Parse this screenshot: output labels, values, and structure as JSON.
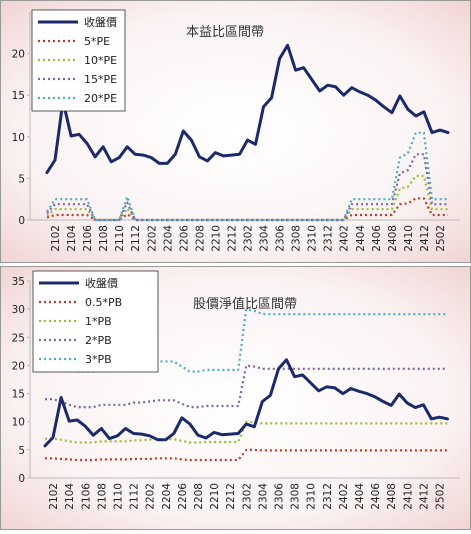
{
  "chart_data": [
    {
      "type": "line",
      "title": "本益比區間帶",
      "categories": [
        null,
        "2102",
        null,
        "2104",
        null,
        "2106",
        null,
        "2108",
        null,
        "2110",
        null,
        "2112",
        null,
        "2202",
        null,
        "2204",
        null,
        "2206",
        null,
        "2208",
        null,
        "2210",
        null,
        "2212",
        null,
        "2302",
        null,
        "2304",
        null,
        "2306",
        null,
        "2308",
        null,
        "2310",
        null,
        "2312",
        null,
        "2402",
        null,
        "2404",
        null,
        "2406",
        null,
        "2408",
        null,
        "2410",
        null,
        "2412",
        null,
        "2502",
        null
      ],
      "ylim": [
        0,
        25
      ],
      "yticks": [
        0,
        5,
        10,
        15,
        20
      ],
      "legend": "upper left",
      "series": [
        {
          "name": "收盤價",
          "color": "#1b2a6b",
          "values": [
            5.7,
            7.2,
            14.3,
            10.1,
            10.3,
            9.2,
            7.6,
            8.8,
            7.0,
            7.5,
            8.8,
            7.9,
            7.8,
            7.5,
            6.8,
            6.8,
            7.9,
            10.7,
            9.6,
            7.6,
            7.1,
            8.1,
            7.7,
            7.8,
            7.9,
            9.6,
            9.1,
            13.6,
            14.7,
            19.4,
            21.0,
            18.0,
            18.3,
            16.9,
            15.5,
            16.2,
            16.0,
            15.0,
            15.9,
            15.4,
            15.0,
            14.4,
            13.6,
            12.9,
            14.9,
            13.3,
            12.5,
            13.0,
            10.5,
            10.8,
            10.5
          ]
        },
        {
          "name": "5*PE",
          "color": "#c0392b",
          "values": [
            0.3,
            0.6,
            0.6,
            0.6,
            0.6,
            0.6,
            0,
            0,
            0,
            0,
            0.7,
            0,
            0,
            0,
            0,
            0,
            0,
            0,
            0,
            0,
            0,
            0,
            0,
            0,
            0,
            0,
            0,
            0,
            0,
            0,
            0,
            0,
            0,
            0,
            0,
            0,
            0,
            0,
            0.6,
            0.6,
            0.6,
            0.6,
            0.6,
            0.6,
            1.9,
            2.0,
            2.6,
            2.6,
            0.6,
            0.6,
            0.6
          ]
        },
        {
          "name": "10*PE",
          "color": "#9bbb3b",
          "values": [
            0.5,
            1.3,
            1.3,
            1.3,
            1.3,
            1.3,
            0,
            0,
            0,
            0,
            1.4,
            0,
            0,
            0,
            0,
            0,
            0,
            0,
            0,
            0,
            0,
            0,
            0,
            0,
            0,
            0,
            0,
            0,
            0,
            0,
            0,
            0,
            0,
            0,
            0,
            0,
            0,
            0,
            1.3,
            1.3,
            1.3,
            1.3,
            1.3,
            1.3,
            3.8,
            4.0,
            5.3,
            5.3,
            1.3,
            1.3,
            1.3
          ]
        },
        {
          "name": "15*PE",
          "color": "#8064a2",
          "values": [
            0.8,
            1.9,
            1.9,
            1.9,
            1.9,
            1.9,
            0,
            0,
            0,
            0,
            2.1,
            0,
            0,
            0,
            0,
            0,
            0,
            0,
            0,
            0,
            0,
            0,
            0,
            0,
            0,
            0,
            0,
            0,
            0,
            0,
            0,
            0,
            0,
            0,
            0,
            0,
            0,
            0,
            1.9,
            1.9,
            1.9,
            1.9,
            1.9,
            1.9,
            5.6,
            6.0,
            7.9,
            7.9,
            1.9,
            1.9,
            1.9
          ]
        },
        {
          "name": "20*PE",
          "color": "#4bacc6",
          "values": [
            1.0,
            2.5,
            2.5,
            2.5,
            2.5,
            2.5,
            0,
            0,
            0,
            0,
            2.8,
            0,
            0,
            0,
            0,
            0,
            0,
            0,
            0,
            0,
            0,
            0,
            0,
            0,
            0,
            0,
            0,
            0,
            0,
            0,
            0,
            0,
            0,
            0,
            0,
            0,
            0,
            0,
            2.5,
            2.5,
            2.5,
            2.5,
            2.5,
            2.5,
            7.5,
            8.0,
            10.5,
            10.5,
            2.5,
            2.5,
            2.5
          ]
        }
      ]
    },
    {
      "type": "line",
      "title": "股價淨值比區間帶",
      "categories": [
        null,
        "2102",
        null,
        "2104",
        null,
        "2106",
        null,
        "2108",
        null,
        "2110",
        null,
        "2112",
        null,
        "2202",
        null,
        "2204",
        null,
        "2206",
        null,
        "2208",
        null,
        "2210",
        null,
        "2212",
        null,
        "2302",
        null,
        "2304",
        null,
        "2306",
        null,
        "2308",
        null,
        "2310",
        null,
        "2312",
        null,
        "2402",
        null,
        "2404",
        null,
        "2406",
        null,
        "2408",
        null,
        "2410",
        null,
        "2412",
        null,
        "2502",
        null
      ],
      "ylim": [
        0,
        35
      ],
      "yticks": [
        0,
        5,
        10,
        15,
        20,
        25,
        30,
        35
      ],
      "legend": "upper left",
      "series": [
        {
          "name": "收盤價",
          "color": "#1b2a6b",
          "values": [
            5.7,
            7.2,
            14.3,
            10.1,
            10.3,
            9.2,
            7.6,
            8.8,
            7.0,
            7.5,
            8.8,
            7.9,
            7.8,
            7.5,
            6.8,
            6.8,
            7.9,
            10.7,
            9.6,
            7.6,
            7.1,
            8.1,
            7.7,
            7.8,
            7.9,
            9.6,
            9.1,
            13.6,
            14.7,
            19.4,
            21.0,
            18.0,
            18.3,
            16.9,
            15.5,
            16.2,
            16.0,
            15.0,
            15.9,
            15.4,
            15.0,
            14.4,
            13.6,
            12.9,
            14.9,
            13.3,
            12.5,
            13.0,
            10.5,
            10.8,
            10.5
          ]
        },
        {
          "name": "0.5*PB",
          "color": "#c0392b",
          "values": [
            3.5,
            3.5,
            3.4,
            3.3,
            3.2,
            3.2,
            3.2,
            3.3,
            3.3,
            3.3,
            3.3,
            3.4,
            3.4,
            3.4,
            3.5,
            3.5,
            3.5,
            3.3,
            3.2,
            3.2,
            3.2,
            3.2,
            3.2,
            3.2,
            3.2,
            5.0,
            5.0,
            4.9,
            4.9,
            4.9,
            4.9,
            4.9,
            4.9,
            4.9,
            4.9,
            4.9,
            4.9,
            4.9,
            4.9,
            4.9,
            4.9,
            4.9,
            4.9,
            4.9,
            4.9,
            4.9,
            4.9,
            4.9,
            4.9,
            4.9,
            4.9
          ]
        },
        {
          "name": "1*PB",
          "color": "#9bbb3b",
          "values": [
            7.0,
            7.0,
            6.8,
            6.5,
            6.3,
            6.3,
            6.3,
            6.5,
            6.5,
            6.5,
            6.5,
            6.7,
            6.7,
            6.8,
            6.9,
            6.9,
            6.9,
            6.6,
            6.3,
            6.3,
            6.4,
            6.4,
            6.4,
            6.4,
            6.4,
            10.0,
            9.9,
            9.7,
            9.7,
            9.7,
            9.7,
            9.7,
            9.7,
            9.7,
            9.7,
            9.7,
            9.7,
            9.7,
            9.7,
            9.7,
            9.7,
            9.7,
            9.7,
            9.7,
            9.7,
            9.7,
            9.7,
            9.7,
            9.7,
            9.7,
            9.7
          ]
        },
        {
          "name": "2*PB",
          "color": "#8064a2",
          "values": [
            14.0,
            14.0,
            13.6,
            13.0,
            12.6,
            12.6,
            12.6,
            13.0,
            13.0,
            13.0,
            13.0,
            13.4,
            13.4,
            13.6,
            13.8,
            13.8,
            13.8,
            13.2,
            12.6,
            12.6,
            12.8,
            12.8,
            12.8,
            12.8,
            12.8,
            20.0,
            19.8,
            19.4,
            19.4,
            19.4,
            19.4,
            19.4,
            19.4,
            19.4,
            19.4,
            19.4,
            19.4,
            19.4,
            19.4,
            19.4,
            19.4,
            19.4,
            19.4,
            19.4,
            19.4,
            19.4,
            19.4,
            19.4,
            19.4,
            19.4,
            19.4
          ]
        },
        {
          "name": "3*PB",
          "color": "#4bacc6",
          "values": [
            21.0,
            21.0,
            20.4,
            19.5,
            18.9,
            18.9,
            18.9,
            19.5,
            19.5,
            19.5,
            19.5,
            20.1,
            20.1,
            20.4,
            20.7,
            20.7,
            20.7,
            19.8,
            18.9,
            18.9,
            19.2,
            19.2,
            19.2,
            19.2,
            19.2,
            30.0,
            29.7,
            29.1,
            29.1,
            29.1,
            29.1,
            29.1,
            29.1,
            29.1,
            29.1,
            29.1,
            29.1,
            29.1,
            29.1,
            29.1,
            29.1,
            29.1,
            29.1,
            29.1,
            29.1,
            29.1,
            29.1,
            29.1,
            29.1,
            29.1,
            29.1
          ]
        }
      ]
    }
  ]
}
